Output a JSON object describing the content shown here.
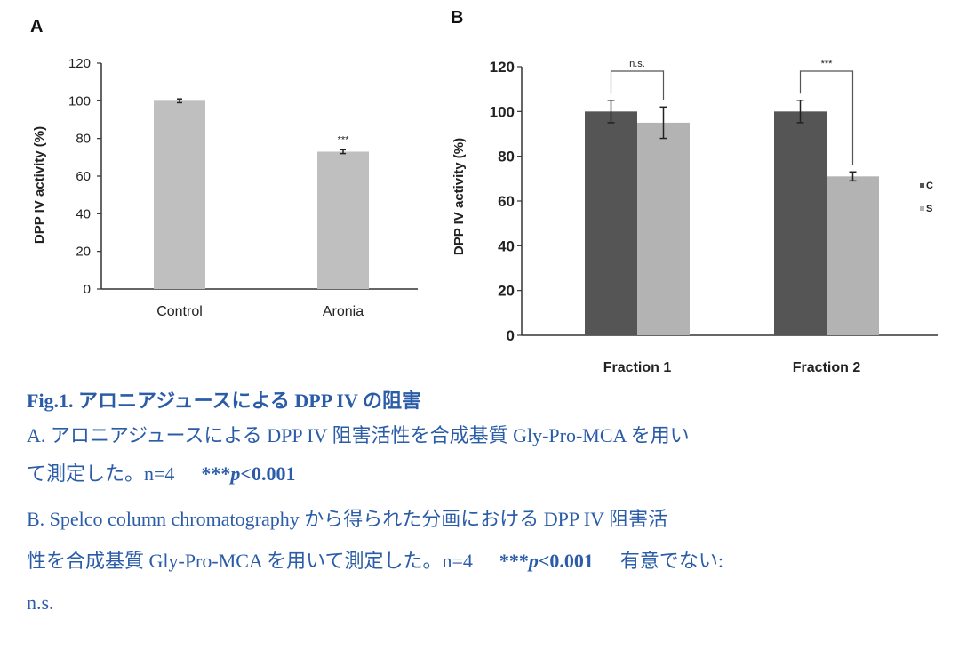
{
  "chart_data": [
    {
      "panel": "A",
      "type": "bar",
      "categories": [
        "Control",
        "Aronia"
      ],
      "values": [
        100,
        73
      ],
      "errors": [
        1,
        1
      ],
      "significance": [
        "",
        "***"
      ],
      "ylabel": "DPP IV activity (%)",
      "ylim": [
        0,
        120
      ],
      "yticks": [
        0,
        20,
        40,
        60,
        80,
        100,
        120
      ],
      "grid": false,
      "bar_color": "#bfbfbf"
    },
    {
      "panel": "B",
      "type": "bar",
      "categories": [
        "Fraction 1",
        "Fraction 2"
      ],
      "series": [
        {
          "values": [
            100,
            100
          ],
          "errors": [
            5,
            5
          ],
          "color": "#555555"
        },
        {
          "values": [
            95,
            71
          ],
          "errors": [
            7,
            2
          ],
          "color": "#b3b3b3"
        }
      ],
      "brackets": [
        "n.s.",
        "***"
      ],
      "legend_fragments": [
        "C",
        "S"
      ],
      "legend_position": "right",
      "ylabel": "DPP IV activity (%)",
      "ylim": [
        0,
        120
      ],
      "yticks": [
        0,
        20,
        40,
        60,
        80,
        100,
        120
      ],
      "grid": false
    }
  ],
  "caption": {
    "title": "Fig.1. アロニアジュースによる DPP IV の阻害",
    "a_line1": "A. アロニアジュースによる DPP IV 阻害活性を合成基質 Gly-Pro-MCA を用い",
    "a_line2": "て測定した。n=4",
    "a_stars": "***",
    "a_p": "p",
    "a_threshold": "<0.001",
    "b_line1": "B. Spelco column chromatography から得られた分画における DPP IV 阻害活",
    "b_line2": "性を合成基質 Gly-Pro-MCA を用いて測定した。n=4",
    "b_stars": "***",
    "b_p": "p",
    "b_threshold": "<0.001",
    "b_ns_text": "有意でない:",
    "b_line3": "n.s."
  }
}
